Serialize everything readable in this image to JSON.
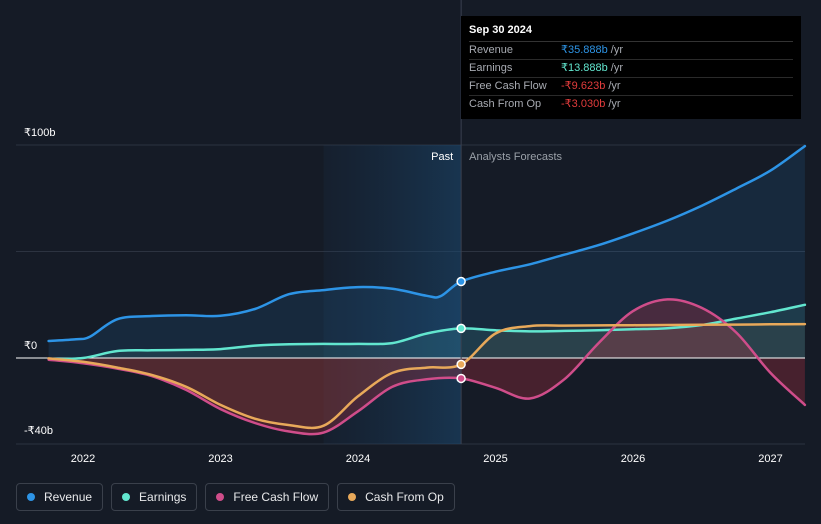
{
  "chart_data": {
    "type": "line",
    "currency": "₹",
    "y_ticks": [
      {
        "value": 100,
        "label": "₹100b"
      },
      {
        "value": 0,
        "label": "₹0"
      },
      {
        "value": -40,
        "label": "-₹40b"
      }
    ],
    "ylim": [
      -40,
      100
    ],
    "xlim": [
      2021.75,
      2027.25
    ],
    "x_ticks": [
      {
        "value": 2022,
        "label": "2022"
      },
      {
        "value": 2023,
        "label": "2023"
      },
      {
        "value": 2024,
        "label": "2024"
      },
      {
        "value": 2025,
        "label": "2025"
      },
      {
        "value": 2026,
        "label": "2026"
      },
      {
        "value": 2027,
        "label": "2027"
      }
    ],
    "past_label": "Past",
    "forecast_label": "Analysts Forecasts",
    "divider_x": 2024.75,
    "shade_start_x": 2023.75,
    "series": [
      {
        "name": "Revenue",
        "color": "#2d94e6",
        "points": [
          [
            2021.75,
            8.0
          ],
          [
            2021.95,
            8.8
          ],
          [
            2022.05,
            10.0
          ],
          [
            2022.25,
            18.2
          ],
          [
            2022.5,
            19.7
          ],
          [
            2022.75,
            20.1
          ],
          [
            2023.0,
            19.8
          ],
          [
            2023.25,
            23.0
          ],
          [
            2023.5,
            30.0
          ],
          [
            2023.75,
            31.9
          ],
          [
            2024.0,
            33.3
          ],
          [
            2024.25,
            32.5
          ],
          [
            2024.5,
            29.2
          ],
          [
            2024.6,
            29.0
          ],
          [
            2024.75,
            35.9
          ],
          [
            2025.0,
            40.5
          ],
          [
            2025.25,
            44.0
          ],
          [
            2025.5,
            48.5
          ],
          [
            2025.75,
            53.0
          ],
          [
            2026.0,
            58.5
          ],
          [
            2026.25,
            64.5
          ],
          [
            2026.5,
            71.5
          ],
          [
            2026.75,
            79.5
          ],
          [
            2027.0,
            88.0
          ],
          [
            2027.25,
            99.5
          ]
        ]
      },
      {
        "name": "Earnings",
        "color": "#62e6cf",
        "points": [
          [
            2021.75,
            -0.5
          ],
          [
            2022.0,
            0.0
          ],
          [
            2022.25,
            3.3
          ],
          [
            2022.5,
            3.6
          ],
          [
            2022.75,
            3.8
          ],
          [
            2023.0,
            4.2
          ],
          [
            2023.25,
            5.8
          ],
          [
            2023.5,
            6.5
          ],
          [
            2023.75,
            6.6
          ],
          [
            2024.0,
            6.6
          ],
          [
            2024.25,
            7.0
          ],
          [
            2024.5,
            11.5
          ],
          [
            2024.75,
            13.9
          ],
          [
            2025.0,
            13.0
          ],
          [
            2025.25,
            12.5
          ],
          [
            2025.5,
            12.7
          ],
          [
            2025.75,
            13.0
          ],
          [
            2026.0,
            13.5
          ],
          [
            2026.25,
            14.0
          ],
          [
            2026.5,
            15.5
          ],
          [
            2026.75,
            18.5
          ],
          [
            2027.0,
            21.5
          ],
          [
            2027.25,
            25.0
          ]
        ]
      },
      {
        "name": "Free Cash Flow",
        "color": "#cf4d8a",
        "points": [
          [
            2021.75,
            -0.8
          ],
          [
            2022.0,
            -2.5
          ],
          [
            2022.25,
            -5.0
          ],
          [
            2022.5,
            -8.5
          ],
          [
            2022.75,
            -15.0
          ],
          [
            2023.0,
            -24.0
          ],
          [
            2023.25,
            -30.5
          ],
          [
            2023.5,
            -34.5
          ],
          [
            2023.75,
            -35.0
          ],
          [
            2024.0,
            -25.0
          ],
          [
            2024.25,
            -13.5
          ],
          [
            2024.5,
            -10.0
          ],
          [
            2024.75,
            -9.6
          ],
          [
            2025.0,
            -14.0
          ],
          [
            2025.25,
            -19.0
          ],
          [
            2025.5,
            -10.0
          ],
          [
            2025.75,
            7.0
          ],
          [
            2026.0,
            22.0
          ],
          [
            2026.25,
            27.5
          ],
          [
            2026.5,
            23.5
          ],
          [
            2026.75,
            12.0
          ],
          [
            2027.0,
            -7.0
          ],
          [
            2027.25,
            -22.0
          ]
        ]
      },
      {
        "name": "Cash From Op",
        "color": "#e8a95a",
        "points": [
          [
            2021.75,
            -0.2
          ],
          [
            2022.0,
            -1.8
          ],
          [
            2022.25,
            -4.5
          ],
          [
            2022.5,
            -8.0
          ],
          [
            2022.75,
            -13.5
          ],
          [
            2023.0,
            -22.0
          ],
          [
            2023.25,
            -28.5
          ],
          [
            2023.5,
            -31.5
          ],
          [
            2023.75,
            -31.8
          ],
          [
            2024.0,
            -18.0
          ],
          [
            2024.25,
            -7.0
          ],
          [
            2024.5,
            -4.5
          ],
          [
            2024.75,
            -3.0
          ],
          [
            2025.0,
            11.5
          ],
          [
            2025.25,
            15.0
          ],
          [
            2025.5,
            15.2
          ],
          [
            2025.75,
            15.3
          ],
          [
            2026.0,
            15.4
          ],
          [
            2026.25,
            15.5
          ],
          [
            2026.5,
            15.6
          ],
          [
            2026.75,
            15.7
          ],
          [
            2027.0,
            15.8
          ],
          [
            2027.25,
            15.9
          ]
        ]
      }
    ]
  },
  "tooltip": {
    "date": "Sep 30 2024",
    "rows": [
      {
        "label": "Revenue",
        "value": "₹35.888b",
        "unit": "/yr",
        "color": "#2d94e6"
      },
      {
        "label": "Earnings",
        "value": "₹13.888b",
        "unit": "/yr",
        "color": "#62e6cf"
      },
      {
        "label": "Free Cash Flow",
        "value": "-₹9.623b",
        "unit": "/yr",
        "color": "#e23c3c"
      },
      {
        "label": "Cash From Op",
        "value": "-₹3.030b",
        "unit": "/yr",
        "color": "#e23c3c"
      }
    ]
  },
  "legend": [
    {
      "label": "Revenue",
      "color": "#2d94e6"
    },
    {
      "label": "Earnings",
      "color": "#62e6cf"
    },
    {
      "label": "Free Cash Flow",
      "color": "#cf4d8a"
    },
    {
      "label": "Cash From Op",
      "color": "#e8a95a"
    }
  ]
}
